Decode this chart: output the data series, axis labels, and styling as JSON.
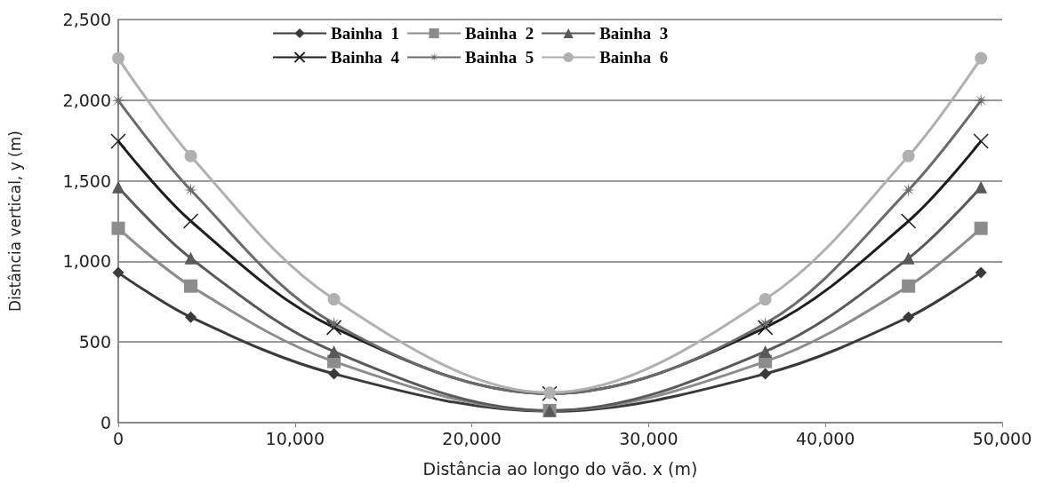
{
  "chart_data": {
    "type": "line",
    "xlabel": "Distância ao longo do vão. x (m)",
    "ylabel": "Distância vertical, y (m)",
    "x": [
      0,
      4100,
      12200,
      24400,
      36600,
      44700,
      48800
    ],
    "xlim": [
      0,
      50000
    ],
    "xticks": [
      {
        "value": 0,
        "label": "0"
      },
      {
        "value": 10000,
        "label": "10,000"
      },
      {
        "value": 20000,
        "label": "20,000"
      },
      {
        "value": 30000,
        "label": "30,000"
      },
      {
        "value": 40000,
        "label": "40,000"
      },
      {
        "value": 50000,
        "label": "50,000"
      }
    ],
    "ylim": [
      0,
      2500
    ],
    "yticks": [
      {
        "value": 0,
        "label": "0"
      },
      {
        "value": 500,
        "label": "500"
      },
      {
        "value": 1000,
        "label": "1,000"
      },
      {
        "value": 1500,
        "label": "1,500"
      },
      {
        "value": 2000,
        "label": "2,000"
      },
      {
        "value": 2500,
        "label": "2,500"
      }
    ],
    "grid": "y",
    "legend": "top",
    "line_style": "solid",
    "series": [
      {
        "name": "Bainha  1",
        "color": "#3a3a3a",
        "marker": "diamond",
        "values": [
          930,
          654,
          303,
          70,
          303,
          654,
          930
        ]
      },
      {
        "name": "Bainha  2",
        "color": "#8c8c8c",
        "marker": "square",
        "values": [
          1205,
          847,
          379,
          75,
          379,
          847,
          1205
        ]
      },
      {
        "name": "Bainha  3",
        "color": "#595959",
        "marker": "triangle",
        "values": [
          1461,
          1020,
          441,
          75,
          441,
          1020,
          1461
        ]
      },
      {
        "name": "Bainha  4",
        "color": "#1e1e1e",
        "marker": "cross",
        "values": [
          1746,
          1250,
          590,
          180,
          590,
          1250,
          1746
        ]
      },
      {
        "name": "Bainha  5",
        "color": "#6b6b6b",
        "marker": "star",
        "values": [
          1998,
          1443,
          615,
          180,
          615,
          1443,
          1998
        ]
      },
      {
        "name": "Bainha  6",
        "color": "#b0b0b0",
        "marker": "circle",
        "values": [
          2260,
          1654,
          765,
          186,
          765,
          1654,
          2260
        ]
      }
    ]
  }
}
